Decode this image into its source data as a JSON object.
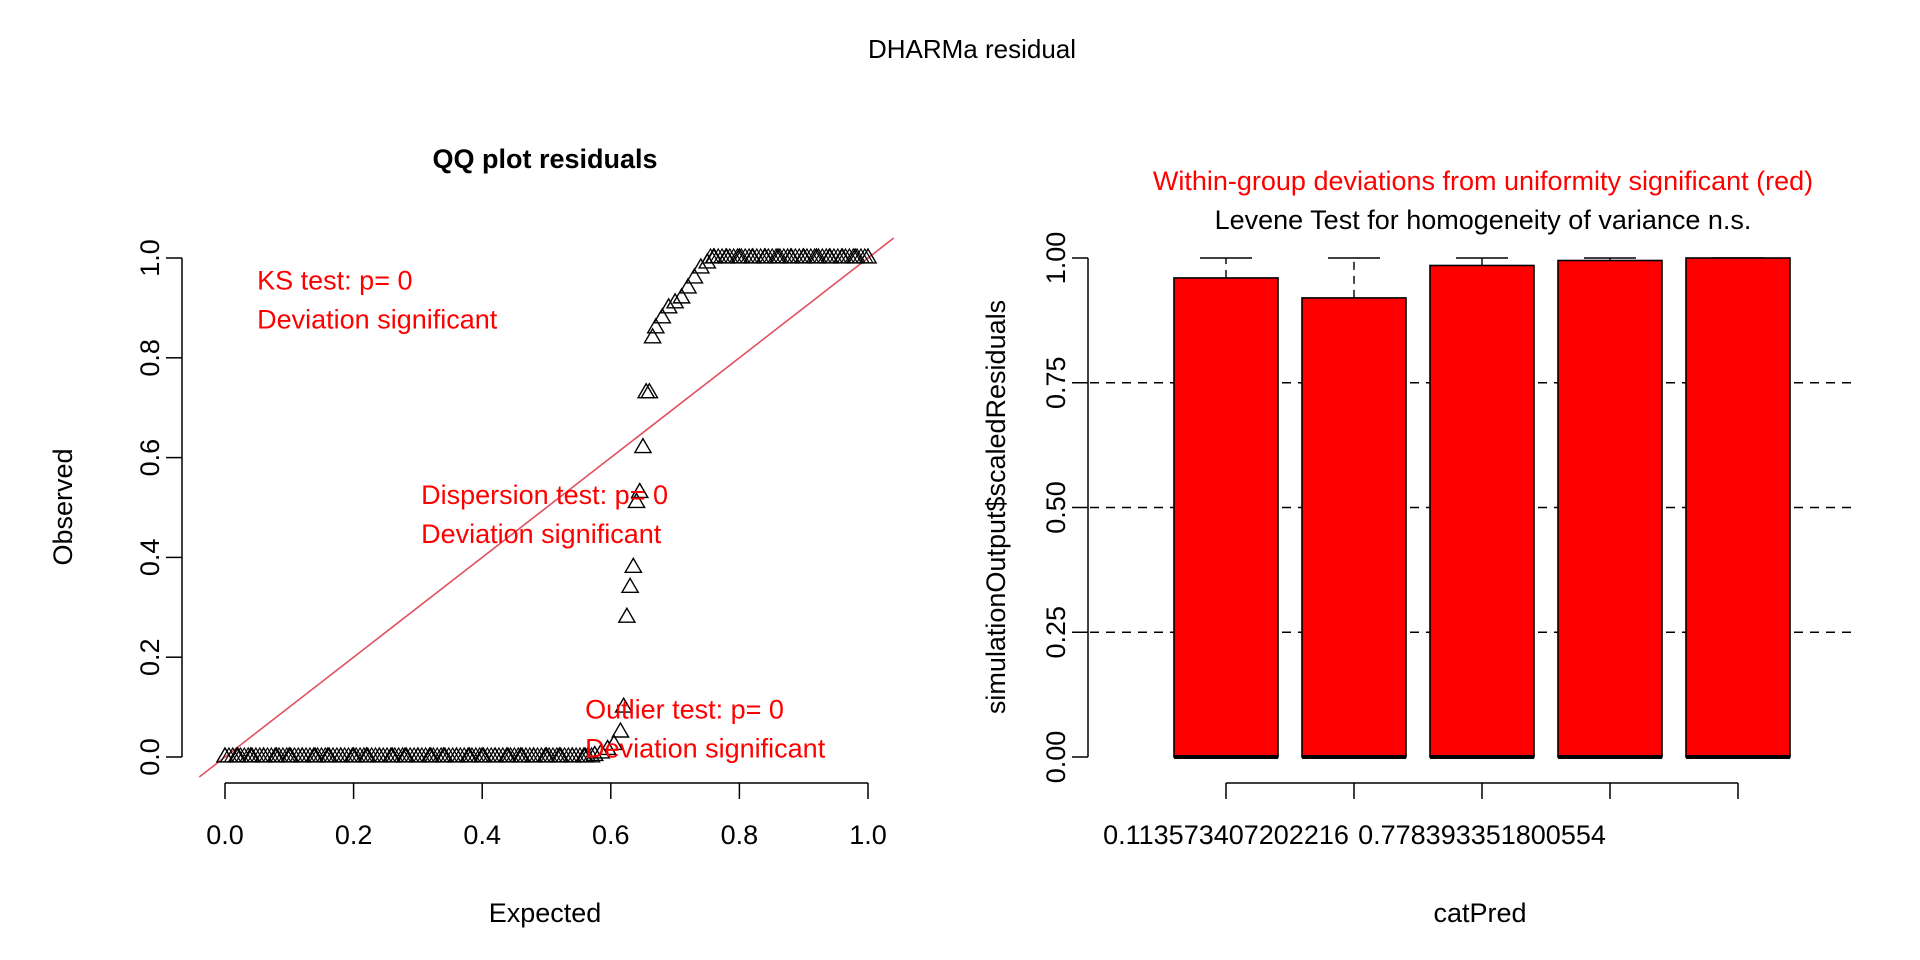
{
  "figure": {
    "title": "DHARMa residual"
  },
  "chart_data": [
    {
      "type": "scatter",
      "title": "QQ plot residuals",
      "xlabel": "Expected",
      "ylabel": "Observed",
      "xlim": [
        0,
        1
      ],
      "ylim": [
        0,
        1
      ],
      "xticks": [
        "0.0",
        "0.2",
        "0.4",
        "0.6",
        "0.8",
        "1.0"
      ],
      "yticks": [
        "0.0",
        "0.2",
        "0.4",
        "0.6",
        "0.8",
        "1.0"
      ],
      "marker": "open-triangle",
      "reference_line": {
        "slope": 1,
        "intercept": 0,
        "color": "#e05060"
      },
      "series": [
        {
          "x": [
            0.0,
            0.02,
            0.04,
            0.06,
            0.08,
            0.1,
            0.12,
            0.14,
            0.16,
            0.18,
            0.2,
            0.22,
            0.24,
            0.26,
            0.28,
            0.3,
            0.32,
            0.34,
            0.36,
            0.38,
            0.4,
            0.42,
            0.44,
            0.46,
            0.48,
            0.5,
            0.52,
            0.54,
            0.56,
            0.575,
            0.585,
            0.595,
            0.605,
            0.615,
            0.62,
            0.625,
            0.63,
            0.635,
            0.64,
            0.645,
            0.65,
            0.655,
            0.66,
            0.665,
            0.67,
            0.68,
            0.69,
            0.7,
            0.71,
            0.72,
            0.73,
            0.74,
            0.75,
            0.76,
            0.78,
            0.8,
            0.82,
            0.84,
            0.86,
            0.88,
            0.9,
            0.92,
            0.94,
            0.96,
            0.98,
            1.0
          ],
          "y": [
            0.0,
            0.0,
            0.0,
            0.0,
            0.0,
            0.0,
            0.0,
            0.0,
            0.0,
            0.0,
            0.0,
            0.0,
            0.0,
            0.0,
            0.0,
            0.0,
            0.0,
            0.0,
            0.0,
            0.0,
            0.0,
            0.0,
            0.0,
            0.0,
            0.0,
            0.0,
            0.0,
            0.0,
            0.0,
            0.003,
            0.008,
            0.015,
            0.025,
            0.05,
            0.1,
            0.28,
            0.34,
            0.38,
            0.51,
            0.53,
            0.62,
            0.73,
            0.73,
            0.84,
            0.86,
            0.88,
            0.9,
            0.91,
            0.92,
            0.94,
            0.96,
            0.98,
            0.99,
            1.0,
            1.0,
            1.0,
            1.0,
            1.0,
            1.0,
            1.0,
            1.0,
            1.0,
            1.0,
            1.0,
            1.0,
            1.0
          ]
        }
      ],
      "annotations": [
        {
          "lines": [
            "KS test: p= 0",
            "Deviation  significant"
          ],
          "color": "#ff0000"
        },
        {
          "lines": [
            "Dispersion test: p= 0",
            "Deviation  significant"
          ],
          "color": "#ff0000"
        },
        {
          "lines": [
            "Outlier test: p= 0",
            "Deviation  significant"
          ],
          "color": "#ff0000"
        }
      ]
    },
    {
      "type": "box",
      "title": "Levene Test for homogeneity of variance n.s.",
      "subtitle": "Within-group deviations from uniformity significant (red)",
      "subtitle_color": "#ff0000",
      "xlabel": "catPred",
      "ylabel": "simulationOutput$scaledResiduals",
      "ylim": [
        0,
        1
      ],
      "yticks": [
        "0.00",
        "0.25",
        "0.50",
        "0.75",
        "1.00"
      ],
      "gridlines_y": [
        0.25,
        0.5,
        0.75
      ],
      "category_labels": [
        "0.113573407202216",
        "",
        "0.778393351800554",
        "",
        ""
      ],
      "box_color": "#ff0000",
      "boxes": [
        {
          "lower": 0.0,
          "median": 0.0,
          "upper": 0.96,
          "whisker_max": 1.0
        },
        {
          "lower": 0.0,
          "median": 0.0,
          "upper": 0.92,
          "whisker_max": 1.0
        },
        {
          "lower": 0.0,
          "median": 0.0,
          "upper": 0.985,
          "whisker_max": 1.0
        },
        {
          "lower": 0.0,
          "median": 0.0,
          "upper": 0.995,
          "whisker_max": 1.0
        },
        {
          "lower": 0.0,
          "median": 0.0,
          "upper": 1.0,
          "whisker_max": 1.0
        }
      ]
    }
  ]
}
